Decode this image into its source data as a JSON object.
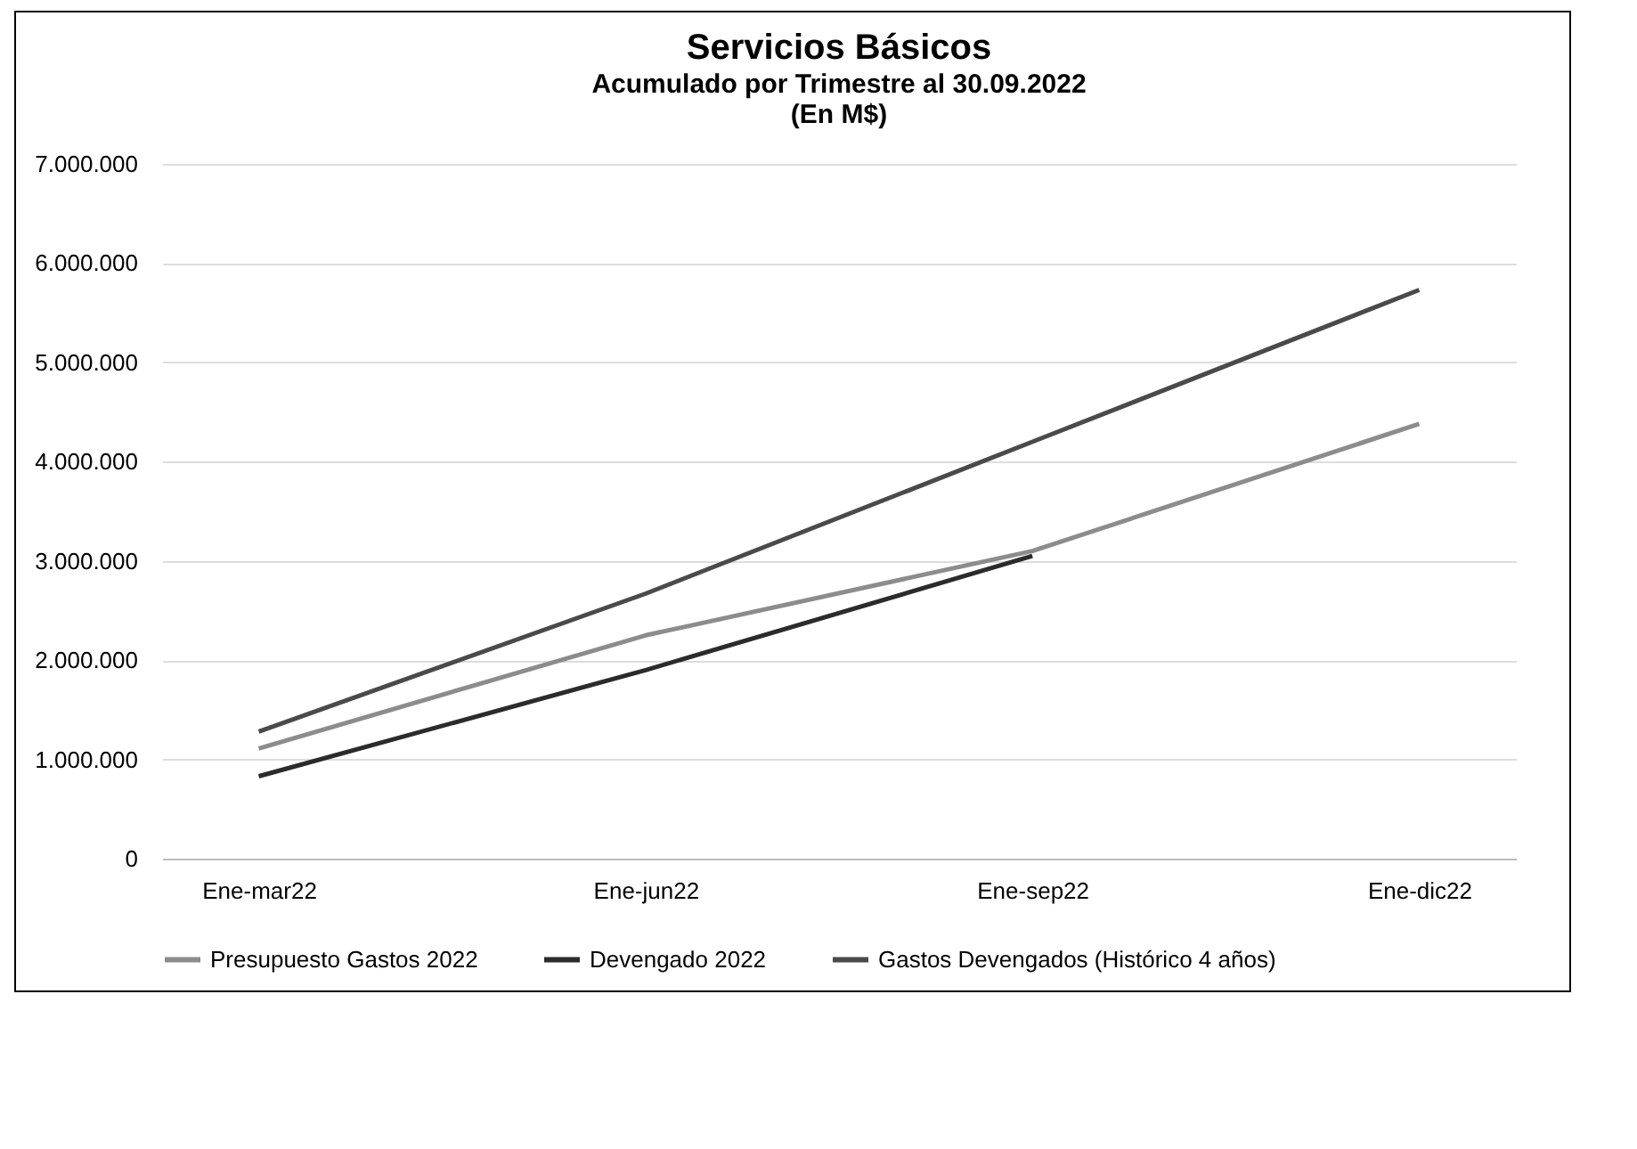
{
  "chart_data": {
    "type": "line",
    "title": "Servicios Básicos",
    "subtitle": [
      "Acumulado por Trimestre al 30.09.2022",
      "(En M$)"
    ],
    "categories": [
      "Ene-mar22",
      "Ene-jun22",
      "Ene-sep22",
      "Ene-dic22"
    ],
    "series": [
      {
        "name": "Presupuesto Gastos 2022",
        "color": "#8c8c8c",
        "values": [
          1110000,
          2250000,
          3100000,
          4380000
        ]
      },
      {
        "name": "Devengado 2022",
        "color": "#2b2b2b",
        "values": [
          830000,
          1900000,
          3050000,
          null
        ]
      },
      {
        "name": "Gastos Devengados (Histórico 4 años)",
        "color": "#4a4a4a",
        "values": [
          1280000,
          2670000,
          4200000,
          5730000
        ]
      }
    ],
    "ylim": [
      0,
      7000000
    ],
    "yticks": [
      0,
      {
        "value": 1000000,
        "label": "1.000.000"
      },
      {
        "value": 2000000,
        "label": "2.000.000"
      },
      {
        "value": 3000000,
        "label": "3.000.000"
      },
      {
        "value": 4000000,
        "label": "4.000.000"
      },
      {
        "value": 5000000,
        "label": "5.000.000"
      },
      {
        "value": 6000000,
        "label": "6.000.000"
      },
      {
        "value": 7000000,
        "label": "7.000.000"
      }
    ],
    "grid": "y",
    "legend": "bottom",
    "marker": "none",
    "line_style": "solid"
  }
}
